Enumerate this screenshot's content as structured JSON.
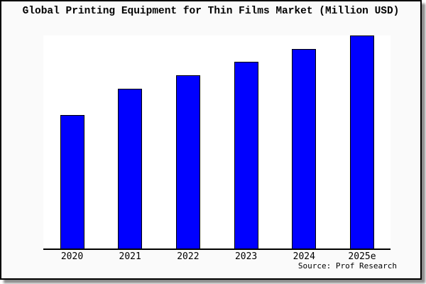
{
  "window": {
    "title": "Global Printing Equipment for Thin Films Market (Million USD)",
    "source_credit": "Source: Prof Research"
  },
  "colors": {
    "bar_fill": "#0000ff",
    "bar_border": "#000000",
    "axis": "#000000",
    "card_background": "#fafafa",
    "plot_background": "#ffffff",
    "card_border": "#000000"
  },
  "chart_data": {
    "type": "bar",
    "title": "Global Printing Equipment for Thin Films Market (Million USD)",
    "categories": [
      "2020",
      "2021",
      "2022",
      "2023",
      "2024",
      "2025e"
    ],
    "values": [
      62.7,
      75.0,
      81.3,
      87.7,
      93.7,
      100.0
    ],
    "units": "relative bar height, % of 2025e bar (no numeric y-axis shown in image)",
    "xlabel": "",
    "ylabel": "",
    "ylim": [
      0,
      100
    ],
    "y_ticks_visible": false,
    "grid": false,
    "legend": null,
    "source": "Source: Prof Research"
  }
}
